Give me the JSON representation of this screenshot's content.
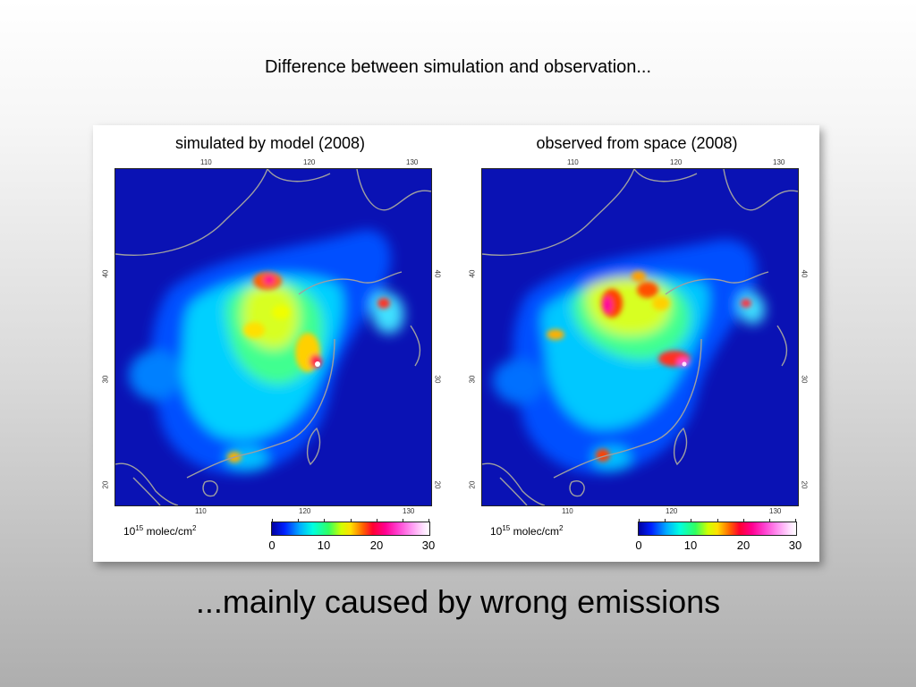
{
  "slide": {
    "title": "Difference between simulation and observation...",
    "caption": "...mainly caused by wrong emissions"
  },
  "panels": [
    {
      "title": "simulated by model (2008)",
      "lon_ticks_top": [
        "110",
        "120",
        "130"
      ],
      "lon_ticks_bottom": [
        "110",
        "120",
        "130"
      ],
      "lat_ticks": [
        "40",
        "30",
        "20"
      ],
      "unit_base": "10",
      "unit_exp": "15",
      "unit_rest": " molec/cm",
      "unit_sq": "2",
      "colorbar_labels": [
        "0",
        "10",
        "20",
        "30"
      ]
    },
    {
      "title": "observed from space (2008)",
      "lon_ticks_top": [
        "110",
        "120",
        "130"
      ],
      "lon_ticks_bottom": [
        "110",
        "120",
        "130"
      ],
      "lat_ticks": [
        "40",
        "30",
        "20"
      ],
      "unit_base": "10",
      "unit_exp": "15",
      "unit_rest": " molec/cm",
      "unit_sq": "2",
      "colorbar_labels": [
        "0",
        "10",
        "20",
        "30"
      ]
    }
  ],
  "colors": {
    "background_ocean": "#0a12b4",
    "low": "#0050ff",
    "mid": "#00e0ff",
    "elevated": "#40ff80",
    "high": "#ffe000",
    "very_high": "#ff2060",
    "extreme": "#ff60e0",
    "border_lines": "#a0a0a0"
  },
  "colorbar": {
    "min": 0,
    "max": 30,
    "ticks": [
      0,
      5,
      10,
      15,
      20,
      25,
      30
    ]
  }
}
